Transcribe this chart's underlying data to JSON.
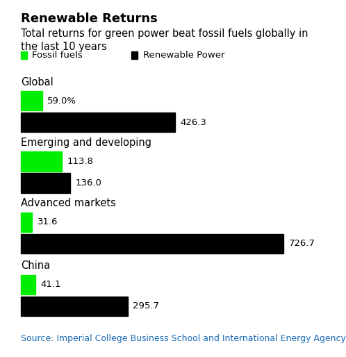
{
  "title": "Renewable Returns",
  "subtitle": "Total returns for green power beat fossil fuels globally in\nthe last 10 years",
  "source": "Source: Imperial College Business School and International Energy Agency",
  "categories": [
    "Global",
    "Emerging and developing",
    "Advanced markets",
    "China"
  ],
  "fossil_values": [
    59.0,
    113.8,
    31.6,
    41.1
  ],
  "renewable_values": [
    426.3,
    136.0,
    726.7,
    295.7
  ],
  "fossil_labels": [
    "59.0%",
    "113.8",
    "31.6",
    "41.1"
  ],
  "renewable_labels": [
    "426.3",
    "136.0",
    "726.7",
    "295.7"
  ],
  "fossil_color": "#00ee00",
  "renewable_color": "#000000",
  "background_color": "#ffffff",
  "max_value": 726.7,
  "title_fontsize": 13,
  "subtitle_fontsize": 10.5,
  "label_fontsize": 9.5,
  "category_fontsize": 10.5,
  "source_fontsize": 9,
  "legend_fossil": "Fossil fuels",
  "legend_renewable": "Renewable Power",
  "source_color": "#1a6bb5"
}
